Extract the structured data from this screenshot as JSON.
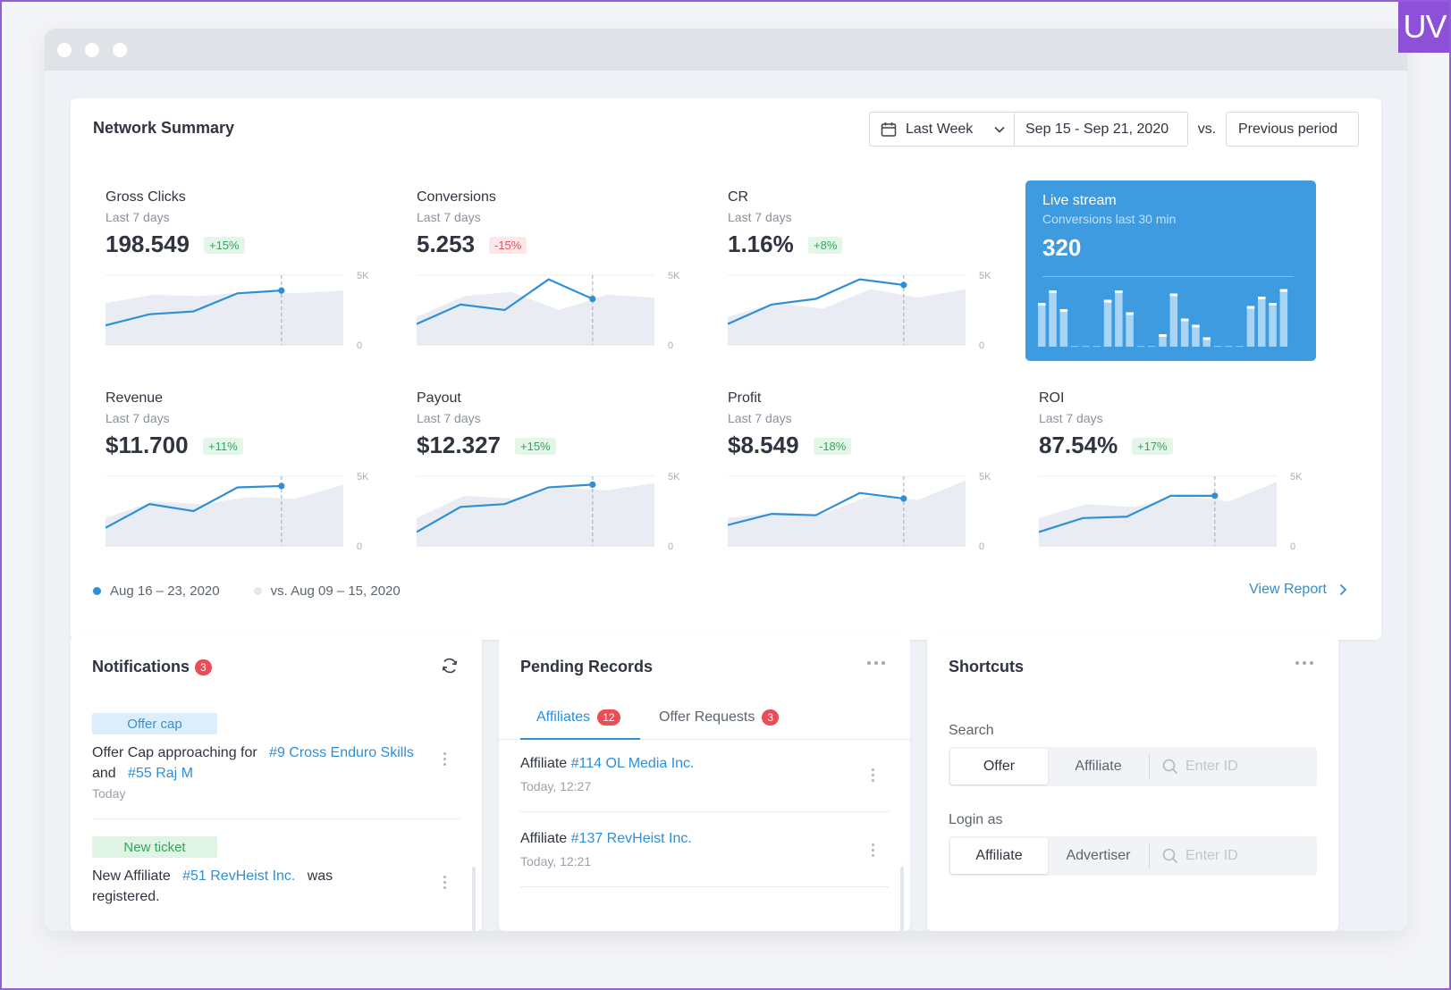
{
  "brand": {
    "badge": "UV"
  },
  "summary": {
    "title": "Network Summary",
    "period_label": "Last Week",
    "date_range": "Sep 15 - Sep 21, 2020",
    "vs_label": "vs.",
    "compare_label": "Previous period",
    "axis_max": "5K",
    "axis_min": "0",
    "metrics": [
      {
        "title": "Gross Clicks",
        "subtitle": "Last 7 days",
        "value": "198.549",
        "change": "+15%",
        "trend": "positive",
        "current": [
          1.4,
          2.2,
          2.4,
          3.7,
          3.9
        ],
        "previous": [
          3.0,
          3.6,
          3.5,
          3.8,
          3.7,
          3.9
        ]
      },
      {
        "title": "Conversions",
        "subtitle": "Last 7 days",
        "value": "5.253",
        "change": "-15%",
        "trend": "negative",
        "current": [
          1.5,
          2.9,
          2.5,
          4.7,
          3.3
        ],
        "previous": [
          2.0,
          3.5,
          3.8,
          2.5,
          3.6,
          3.4
        ]
      },
      {
        "title": "CR",
        "subtitle": "Last 7 days",
        "value": "1.16%",
        "change": "+8%",
        "trend": "positive",
        "current": [
          1.5,
          2.9,
          3.3,
          4.7,
          4.3
        ],
        "previous": [
          2.0,
          3.0,
          2.6,
          4.0,
          3.4,
          4.0
        ]
      },
      {
        "title": "Revenue",
        "subtitle": "Last 7 days",
        "value": "$11.700",
        "change": "+11%",
        "trend": "positive",
        "current": [
          1.3,
          3.0,
          2.5,
          4.2,
          4.3
        ],
        "previous": [
          2.0,
          3.2,
          3.0,
          3.5,
          3.4,
          4.4
        ]
      },
      {
        "title": "Payout",
        "subtitle": "Last 7 days",
        "value": "$12.327",
        "change": "+15%",
        "trend": "positive",
        "current": [
          1.0,
          2.8,
          3.0,
          4.2,
          4.4
        ],
        "previous": [
          2.0,
          3.6,
          3.4,
          4.2,
          4.0,
          4.5
        ]
      },
      {
        "title": "Profit",
        "subtitle": "Last 7 days",
        "value": "$8.549",
        "change": "-18%",
        "trend": "positive",
        "current": [
          1.5,
          2.3,
          2.2,
          3.8,
          3.4
        ],
        "previous": [
          2.0,
          2.4,
          2.3,
          3.6,
          3.3,
          4.7
        ]
      },
      {
        "title": "ROI",
        "subtitle": "Last 7 days",
        "value": "87.54%",
        "change": "+17%",
        "trend": "positive",
        "current": [
          1.0,
          2.0,
          2.1,
          3.6,
          3.6
        ],
        "previous": [
          2.0,
          3.0,
          2.8,
          3.6,
          3.2,
          4.6
        ]
      }
    ],
    "live": {
      "title": "Live stream",
      "subtitle": "Conversions last 30 min",
      "value": "320",
      "bars": [
        0.7,
        0.9,
        0.6,
        0,
        0,
        0,
        0.75,
        0.9,
        0.55,
        0,
        0,
        0.2,
        0.85,
        0.45,
        0.35,
        0.15,
        0,
        0,
        0,
        0.65,
        0.8,
        0.7,
        0.92
      ]
    },
    "legend": [
      {
        "label": "Aug 16 – 23, 2020",
        "color": "#2f8fd6"
      },
      {
        "label": "vs. Aug 09 – 15, 2020",
        "color": "#e3e7ee"
      }
    ],
    "view_report": "View Report"
  },
  "notifications": {
    "title": "Notifications",
    "count": "3",
    "items": [
      {
        "tag": "Offer cap",
        "line1_a": "Offer Cap approaching for",
        "line1_link": "#9 Cross Enduro Skills",
        "line2_a": "and",
        "line2_link": "#55 Raj M",
        "time": "Today"
      },
      {
        "tag": "New ticket",
        "line1_a": "New Affiliate",
        "line1_link": "#51 RevHeist Inc.",
        "line1_b": "was",
        "line2_a": "registered."
      }
    ]
  },
  "pending": {
    "title": "Pending Records",
    "tabs": [
      {
        "label": "Affiliates",
        "count": "12"
      },
      {
        "label": "Offer Requests",
        "count": "3"
      }
    ],
    "records": [
      {
        "prefix": "Affiliate",
        "link": "#114 OL Media Inc.",
        "time": "Today, 12:27"
      },
      {
        "prefix": "Affiliate",
        "link": "#137 RevHeist Inc.",
        "time": "Today, 12:21"
      }
    ]
  },
  "shortcuts": {
    "title": "Shortcuts",
    "search": {
      "label": "Search",
      "options": [
        "Offer",
        "Affiliate"
      ],
      "placeholder": "Enter ID"
    },
    "login": {
      "label": "Login as",
      "options": [
        "Affiliate",
        "Advertiser"
      ],
      "placeholder": "Enter ID"
    }
  }
}
